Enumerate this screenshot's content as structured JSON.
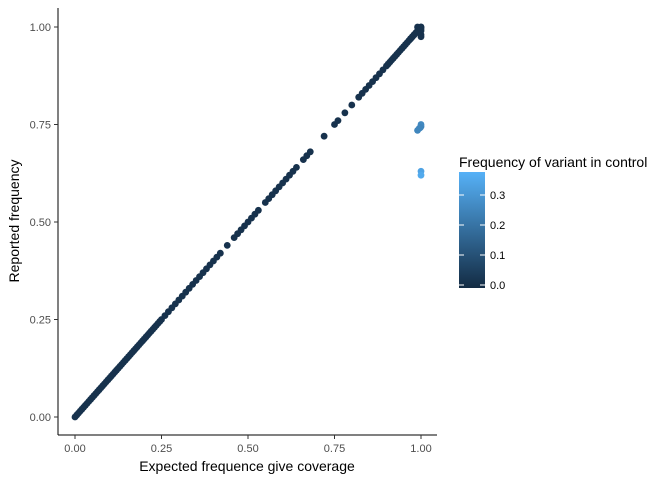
{
  "chart_data": {
    "type": "scatter",
    "title": "",
    "xlabel": "Expected frequence give coverage",
    "ylabel": "Reported frequency",
    "xlim": [
      0,
      1
    ],
    "ylim": [
      0,
      1
    ],
    "x_ticks": [
      "0.00",
      "0.25",
      "0.50",
      "0.75",
      "1.00"
    ],
    "y_ticks": [
      "0.00",
      "0.25",
      "0.50",
      "0.75",
      "1.00"
    ],
    "grid": false,
    "legend": {
      "title": "Frequency of variant in control",
      "type": "colorbar",
      "placement": "right",
      "range": [
        0,
        0.37
      ],
      "ticks": [
        "0.0",
        "0.1",
        "0.2",
        "0.3"
      ],
      "low_color": "#132B43",
      "high_color": "#56B1F7"
    },
    "diagonal_series": {
      "x": [
        0.0,
        0.005,
        0.01,
        0.015,
        0.02,
        0.025,
        0.03,
        0.035,
        0.04,
        0.045,
        0.05,
        0.055,
        0.06,
        0.065,
        0.07,
        0.075,
        0.08,
        0.085,
        0.09,
        0.095,
        0.1,
        0.105,
        0.11,
        0.115,
        0.12,
        0.125,
        0.13,
        0.135,
        0.14,
        0.145,
        0.15,
        0.155,
        0.16,
        0.165,
        0.17,
        0.175,
        0.18,
        0.185,
        0.19,
        0.195,
        0.2,
        0.205,
        0.21,
        0.215,
        0.22,
        0.225,
        0.23,
        0.235,
        0.24,
        0.245,
        0.25,
        0.26,
        0.27,
        0.28,
        0.29,
        0.3,
        0.31,
        0.32,
        0.33,
        0.34,
        0.35,
        0.36,
        0.37,
        0.38,
        0.39,
        0.4,
        0.41,
        0.42,
        0.44,
        0.46,
        0.47,
        0.48,
        0.49,
        0.5,
        0.51,
        0.52,
        0.53,
        0.55,
        0.56,
        0.57,
        0.58,
        0.59,
        0.6,
        0.61,
        0.62,
        0.63,
        0.64,
        0.66,
        0.67,
        0.68,
        0.72,
        0.75,
        0.76,
        0.78,
        0.8,
        0.82,
        0.83,
        0.84,
        0.85,
        0.86,
        0.87,
        0.88,
        0.89,
        0.9,
        0.905,
        0.91,
        0.915,
        0.92,
        0.925,
        0.93,
        0.935,
        0.94,
        0.945,
        0.95,
        0.955,
        0.96,
        0.965,
        0.97,
        0.975,
        0.98,
        0.985,
        0.99,
        0.995,
        1.0
      ],
      "color_value": 0.02
    },
    "cluster_near_one": {
      "x": [
        0.97,
        0.975,
        0.98,
        0.985,
        0.99,
        0.995,
        1.0,
        1.0,
        1.0,
        1.0,
        0.99,
        0.995,
        1.0
      ],
      "y": [
        0.97,
        0.975,
        0.98,
        0.985,
        0.99,
        0.995,
        1.0,
        0.99,
        0.98,
        0.975,
        1.0,
        0.99,
        0.995
      ],
      "color_value": 0.02
    },
    "outliers": {
      "x": [
        0.99,
        0.995,
        1.0,
        1.0,
        0.998,
        1.0,
        1.0
      ],
      "y": [
        0.735,
        0.74,
        0.745,
        0.75,
        0.742,
        0.63,
        0.62
      ],
      "color_value": [
        0.25,
        0.25,
        0.24,
        0.26,
        0.25,
        0.33,
        0.35
      ]
    }
  }
}
